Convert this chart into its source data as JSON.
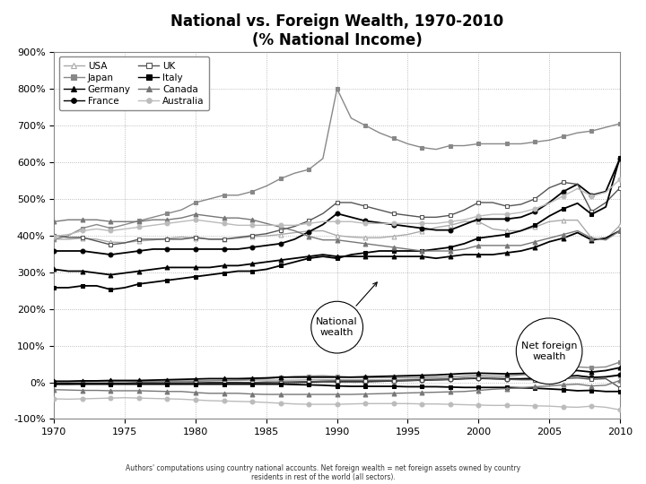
{
  "title": "National vs. Foreign Wealth, 1970-2010\n(% National Income)",
  "years": [
    1970,
    1971,
    1972,
    1973,
    1974,
    1975,
    1976,
    1977,
    1978,
    1979,
    1980,
    1981,
    1982,
    1983,
    1984,
    1985,
    1986,
    1987,
    1988,
    1989,
    1990,
    1991,
    1992,
    1993,
    1994,
    1995,
    1996,
    1997,
    1998,
    1999,
    2000,
    2001,
    2002,
    2003,
    2004,
    2005,
    2006,
    2007,
    2008,
    2009,
    2010
  ],
  "national_wealth": {
    "USA": [
      390,
      390,
      393,
      390,
      382,
      381,
      385,
      388,
      392,
      396,
      393,
      390,
      390,
      393,
      397,
      399,
      403,
      408,
      412,
      413,
      400,
      396,
      394,
      394,
      398,
      403,
      412,
      422,
      428,
      438,
      438,
      418,
      413,
      413,
      423,
      438,
      442,
      442,
      393,
      389,
      428
    ],
    "Japan": [
      390,
      400,
      420,
      430,
      420,
      430,
      440,
      450,
      460,
      470,
      490,
      500,
      510,
      510,
      520,
      535,
      555,
      570,
      580,
      610,
      800,
      720,
      700,
      680,
      665,
      650,
      640,
      635,
      645,
      645,
      650,
      650,
      650,
      650,
      655,
      660,
      670,
      680,
      685,
      695,
      705
    ],
    "Germany": [
      308,
      303,
      303,
      298,
      293,
      298,
      303,
      308,
      313,
      313,
      313,
      313,
      318,
      318,
      323,
      328,
      333,
      338,
      343,
      348,
      343,
      343,
      343,
      343,
      343,
      343,
      343,
      338,
      343,
      348,
      348,
      348,
      353,
      358,
      368,
      383,
      393,
      408,
      388,
      393,
      413
    ],
    "France": [
      358,
      358,
      358,
      353,
      348,
      353,
      358,
      363,
      363,
      363,
      363,
      363,
      363,
      363,
      368,
      373,
      378,
      390,
      410,
      430,
      460,
      450,
      440,
      435,
      430,
      425,
      420,
      415,
      415,
      430,
      445,
      445,
      445,
      450,
      465,
      490,
      520,
      540,
      510,
      520,
      610
    ],
    "UK": [
      400,
      395,
      395,
      385,
      375,
      380,
      390,
      390,
      390,
      390,
      395,
      390,
      390,
      395,
      400,
      405,
      415,
      425,
      440,
      460,
      490,
      490,
      480,
      470,
      460,
      455,
      450,
      450,
      455,
      470,
      490,
      490,
      480,
      485,
      500,
      530,
      545,
      540,
      465,
      490,
      530
    ],
    "Italy": [
      258,
      258,
      263,
      263,
      253,
      258,
      268,
      273,
      278,
      283,
      288,
      293,
      298,
      303,
      303,
      308,
      318,
      328,
      338,
      343,
      338,
      348,
      353,
      358,
      358,
      358,
      358,
      363,
      368,
      378,
      393,
      398,
      403,
      413,
      428,
      453,
      473,
      488,
      458,
      478,
      613
    ],
    "Canada": [
      438,
      443,
      443,
      443,
      438,
      438,
      438,
      443,
      443,
      448,
      458,
      453,
      448,
      448,
      443,
      433,
      423,
      413,
      398,
      388,
      388,
      383,
      378,
      373,
      368,
      363,
      358,
      358,
      358,
      363,
      373,
      373,
      373,
      373,
      383,
      393,
      403,
      413,
      393,
      388,
      413
    ],
    "Australia": [
      398,
      403,
      413,
      418,
      413,
      418,
      423,
      428,
      433,
      438,
      443,
      438,
      433,
      428,
      428,
      428,
      428,
      428,
      433,
      438,
      438,
      438,
      433,
      433,
      433,
      433,
      433,
      433,
      438,
      443,
      453,
      458,
      458,
      463,
      473,
      488,
      508,
      528,
      508,
      518,
      553
    ]
  },
  "foreign_wealth": {
    "USA": [
      2,
      2,
      2,
      3,
      3,
      3,
      3,
      3,
      4,
      4,
      4,
      5,
      5,
      5,
      6,
      6,
      6,
      6,
      7,
      7,
      7,
      7,
      7,
      7,
      7,
      8,
      9,
      10,
      10,
      12,
      13,
      12,
      11,
      11,
      12,
      14,
      16,
      18,
      15,
      14,
      18
    ],
    "Japan": [
      2,
      2,
      2,
      2,
      2,
      2,
      2,
      2,
      3,
      3,
      3,
      4,
      5,
      6,
      8,
      10,
      13,
      16,
      17,
      18,
      16,
      14,
      13,
      13,
      13,
      13,
      13,
      14,
      15,
      17,
      18,
      17,
      17,
      20,
      23,
      30,
      35,
      42,
      40,
      42,
      55
    ],
    "Germany": [
      3,
      3,
      4,
      4,
      5,
      5,
      5,
      6,
      7,
      8,
      9,
      10,
      10,
      10,
      11,
      12,
      14,
      14,
      14,
      14,
      14,
      14,
      15,
      16,
      17,
      18,
      19,
      20,
      22,
      24,
      25,
      24,
      23,
      24,
      26,
      28,
      30,
      32,
      28,
      32,
      40
    ],
    "France": [
      -3,
      -3,
      -3,
      -3,
      -3,
      -3,
      -2,
      -2,
      -2,
      -2,
      -2,
      -1,
      -1,
      -1,
      -1,
      0,
      0,
      0,
      1,
      2,
      2,
      2,
      2,
      3,
      4,
      5,
      6,
      7,
      8,
      10,
      11,
      10,
      9,
      9,
      10,
      13,
      16,
      18,
      13,
      15,
      20
    ],
    "UK": [
      -5,
      -5,
      -4,
      -4,
      -4,
      -4,
      -3,
      -3,
      -3,
      -3,
      -2,
      -2,
      -2,
      -2,
      -1,
      -1,
      0,
      1,
      2,
      3,
      4,
      4,
      4,
      4,
      4,
      5,
      6,
      7,
      8,
      10,
      12,
      10,
      8,
      7,
      7,
      8,
      10,
      12,
      8,
      10,
      -15
    ],
    "Italy": [
      -5,
      -5,
      -5,
      -5,
      -5,
      -5,
      -5,
      -5,
      -5,
      -5,
      -5,
      -5,
      -5,
      -5,
      -5,
      -5,
      -5,
      -6,
      -7,
      -8,
      -10,
      -11,
      -11,
      -11,
      -11,
      -12,
      -12,
      -12,
      -13,
      -14,
      -14,
      -14,
      -14,
      -15,
      -16,
      -18,
      -20,
      -23,
      -22,
      -25,
      -25
    ],
    "Canada": [
      -20,
      -21,
      -22,
      -22,
      -23,
      -23,
      -23,
      -24,
      -25,
      -25,
      -28,
      -30,
      -30,
      -30,
      -32,
      -33,
      -33,
      -33,
      -33,
      -33,
      -33,
      -33,
      -32,
      -31,
      -30,
      -29,
      -28,
      -27,
      -26,
      -25,
      -22,
      -19,
      -17,
      -15,
      -12,
      -10,
      -7,
      -5,
      -10,
      -8,
      5
    ],
    "Australia": [
      -45,
      -46,
      -45,
      -44,
      -43,
      -42,
      -43,
      -44,
      -45,
      -46,
      -48,
      -50,
      -51,
      -52,
      -53,
      -55,
      -57,
      -59,
      -60,
      -60,
      -60,
      -59,
      -58,
      -58,
      -58,
      -58,
      -59,
      -59,
      -60,
      -61,
      -62,
      -63,
      -63,
      -63,
      -64,
      -65,
      -67,
      -68,
      -65,
      -68,
      -75
    ]
  },
  "footnote": "Authors' computations using country national accounts. Net foreign wealth = net foreign assets owned by country\nresidents in rest of the world (all sectors).",
  "ylim": [
    -100,
    900
  ],
  "yticks": [
    -100,
    0,
    100,
    200,
    300,
    400,
    500,
    600,
    700,
    800,
    900
  ],
  "xlim": [
    1970,
    2010
  ],
  "xticks": [
    1970,
    1975,
    1980,
    1985,
    1990,
    1995,
    2000,
    2005,
    2010
  ],
  "series_styles": {
    "USA": {
      "color": "#aaaaaa",
      "marker": "^",
      "markersize": 3.5,
      "linestyle": "-",
      "linewidth": 1.0,
      "markerfacecolor": "white",
      "markeredgewidth": 0.8
    },
    "Japan": {
      "color": "#888888",
      "marker": "s",
      "markersize": 3.5,
      "linestyle": "-",
      "linewidth": 1.0,
      "markerfacecolor": "#888888",
      "markeredgewidth": 0.8
    },
    "Germany": {
      "color": "#000000",
      "marker": "^",
      "markersize": 3.5,
      "linestyle": "-",
      "linewidth": 1.3,
      "markerfacecolor": "#000000",
      "markeredgewidth": 0.8
    },
    "France": {
      "color": "#000000",
      "marker": "o",
      "markersize": 3.5,
      "linestyle": "-",
      "linewidth": 1.3,
      "markerfacecolor": "#000000",
      "markeredgewidth": 0.8
    },
    "UK": {
      "color": "#555555",
      "marker": "s",
      "markersize": 3.5,
      "linestyle": "-",
      "linewidth": 1.0,
      "markerfacecolor": "white",
      "markeredgewidth": 0.8
    },
    "Italy": {
      "color": "#000000",
      "marker": "s",
      "markersize": 3.5,
      "linestyle": "-",
      "linewidth": 1.3,
      "markerfacecolor": "#000000",
      "markeredgewidth": 0.8
    },
    "Canada": {
      "color": "#777777",
      "marker": "^",
      "markersize": 3.5,
      "linestyle": "-",
      "linewidth": 1.0,
      "markerfacecolor": "#777777",
      "markeredgewidth": 0.8
    },
    "Australia": {
      "color": "#bbbbbb",
      "marker": "o",
      "markersize": 3.5,
      "linestyle": "-",
      "linewidth": 1.0,
      "markerfacecolor": "#bbbbbb",
      "markeredgewidth": 0.8
    }
  },
  "legend_order": [
    "USA",
    "Japan",
    "Germany",
    "France",
    "UK",
    "Italy",
    "Canada",
    "Australia"
  ],
  "annotation_national": {
    "text": "National\nwealth",
    "xy_x": 1993,
    "xy_y": 280,
    "xt_x": 1990,
    "xt_y": 150
  },
  "annotation_foreign": {
    "text": "Net foreign\nwealth",
    "xy_x": 2004,
    "xy_y": 8,
    "xt_x": 2005,
    "xt_y": 85
  }
}
